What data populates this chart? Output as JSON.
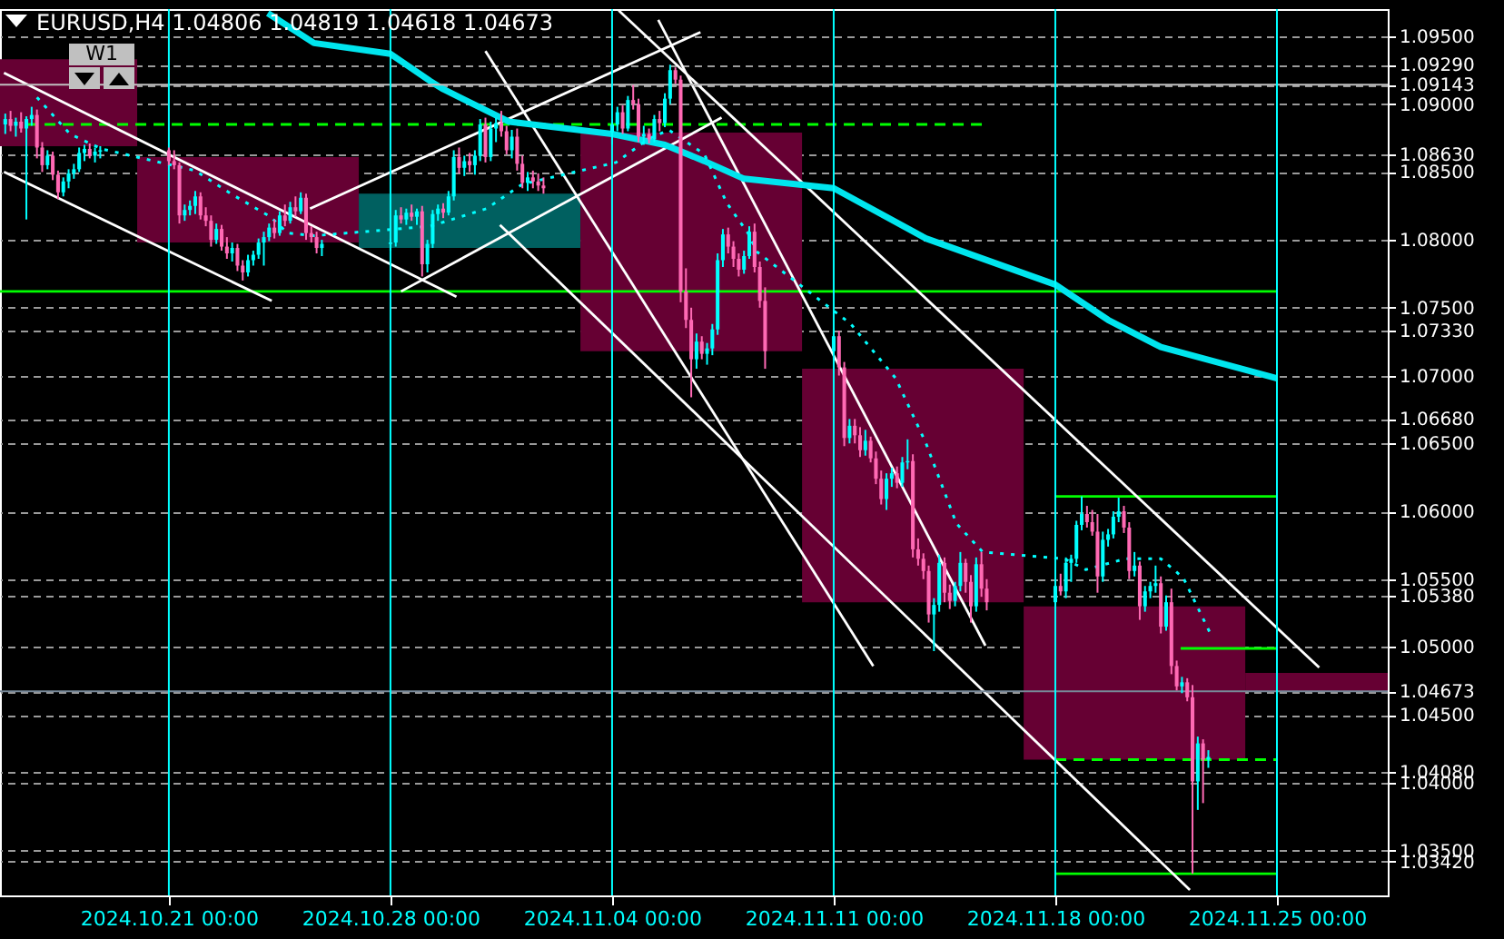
{
  "chart_data": {
    "type": "candlestick",
    "title": "EURUSD,H4  1.04806 1.04819 1.04618 1.04673",
    "annotations": [
      "W1"
    ],
    "x": [
      "2024-10-15T20:00",
      "2024-10-16T00:00",
      "2024-10-16T04:00",
      "2024-10-16T08:00",
      "2024-10-16T12:00",
      "2024-10-16T16:00",
      "2024-10-16T20:00",
      "2024-10-17T00:00",
      "2024-10-17T04:00",
      "2024-10-17T08:00",
      "2024-10-17T12:00",
      "2024-10-17T16:00",
      "2024-10-17T20:00",
      "2024-10-18T00:00",
      "2024-10-18T04:00",
      "2024-10-18T08:00",
      "2024-10-18T12:00",
      "2024-10-18T16:00",
      "2024-10-18T20:00",
      "2024-10-21T00:00",
      "2024-10-21T04:00",
      "2024-10-21T08:00",
      "2024-10-21T12:00",
      "2024-10-21T16:00",
      "2024-10-21T20:00",
      "2024-10-22T00:00",
      "2024-10-22T04:00",
      "2024-10-22T08:00",
      "2024-10-22T12:00",
      "2024-10-22T16:00",
      "2024-10-22T20:00",
      "2024-10-23T00:00",
      "2024-10-23T04:00",
      "2024-10-23T08:00",
      "2024-10-23T12:00",
      "2024-10-23T16:00",
      "2024-10-23T20:00",
      "2024-10-24T00:00",
      "2024-10-24T04:00",
      "2024-10-24T08:00",
      "2024-10-24T12:00",
      "2024-10-24T16:00",
      "2024-10-24T20:00",
      "2024-10-25T00:00",
      "2024-10-25T04:00",
      "2024-10-25T08:00",
      "2024-10-25T12:00",
      "2024-10-25T16:00",
      "2024-10-25T20:00",
      "2024-10-28T00:00",
      "2024-10-28T04:00",
      "2024-10-28T08:00",
      "2024-10-28T12:00",
      "2024-10-28T16:00",
      "2024-10-28T20:00",
      "2024-10-29T00:00",
      "2024-10-29T04:00",
      "2024-10-29T08:00",
      "2024-10-29T12:00",
      "2024-10-29T16:00",
      "2024-10-29T20:00",
      "2024-10-30T00:00",
      "2024-10-30T04:00",
      "2024-10-30T08:00",
      "2024-10-30T12:00",
      "2024-10-30T16:00",
      "2024-10-30T20:00",
      "2024-10-31T00:00",
      "2024-10-31T04:00",
      "2024-10-31T08:00",
      "2024-10-31T12:00",
      "2024-10-31T16:00",
      "2024-10-31T20:00",
      "2024-11-01T00:00",
      "2024-11-01T04:00",
      "2024-11-01T08:00",
      "2024-11-01T12:00",
      "2024-11-01T16:00",
      "2024-11-01T20:00",
      "2024-11-04T00:00",
      "2024-11-04T04:00",
      "2024-11-04T08:00",
      "2024-11-04T12:00",
      "2024-11-04T16:00",
      "2024-11-04T20:00",
      "2024-11-05T00:00",
      "2024-11-05T04:00",
      "2024-11-05T08:00",
      "2024-11-05T12:00",
      "2024-11-05T16:00",
      "2024-11-05T20:00",
      "2024-11-06T00:00",
      "2024-11-06T04:00",
      "2024-11-06T08:00",
      "2024-11-06T12:00",
      "2024-11-06T16:00",
      "2024-11-06T20:00",
      "2024-11-07T00:00",
      "2024-11-07T04:00",
      "2024-11-07T08:00",
      "2024-11-07T12:00",
      "2024-11-07T16:00",
      "2024-11-07T20:00",
      "2024-11-08T00:00",
      "2024-11-08T04:00",
      "2024-11-08T08:00",
      "2024-11-08T12:00",
      "2024-11-08T16:00",
      "2024-11-08T20:00",
      "2024-11-11T00:00",
      "2024-11-11T04:00",
      "2024-11-11T08:00",
      "2024-11-11T12:00",
      "2024-11-11T16:00",
      "2024-11-11T20:00",
      "2024-11-12T00:00",
      "2024-11-12T04:00",
      "2024-11-12T08:00",
      "2024-11-12T12:00",
      "2024-11-12T16:00",
      "2024-11-12T20:00",
      "2024-11-13T00:00",
      "2024-11-13T04:00",
      "2024-11-13T08:00",
      "2024-11-13T12:00",
      "2024-11-13T16:00",
      "2024-11-13T20:00",
      "2024-11-14T00:00",
      "2024-11-14T04:00",
      "2024-11-14T08:00",
      "2024-11-14T12:00",
      "2024-11-14T16:00",
      "2024-11-14T20:00",
      "2024-11-15T00:00",
      "2024-11-15T04:00",
      "2024-11-15T08:00",
      "2024-11-15T12:00",
      "2024-11-15T16:00",
      "2024-11-15T20:00",
      "2024-11-18T00:00",
      "2024-11-18T04:00",
      "2024-11-18T08:00",
      "2024-11-18T12:00",
      "2024-11-18T16:00",
      "2024-11-18T20:00",
      "2024-11-19T00:00",
      "2024-11-19T04:00",
      "2024-11-19T08:00",
      "2024-11-19T12:00",
      "2024-11-19T16:00",
      "2024-11-19T20:00",
      "2024-11-20T00:00",
      "2024-11-20T04:00",
      "2024-11-20T08:00",
      "2024-11-20T12:00",
      "2024-11-20T16:00",
      "2024-11-20T20:00",
      "2024-11-21T00:00",
      "2024-11-21T04:00",
      "2024-11-21T08:00",
      "2024-11-21T12:00",
      "2024-11-21T16:00",
      "2024-11-21T20:00",
      "2024-11-22T00:00",
      "2024-11-22T04:00",
      "2024-11-22T08:00",
      "2024-11-22T12:00",
      "2024-11-22T16:00",
      "2024-11-22T20:00"
    ],
    "ohlc": [
      [
        1.0885,
        1.0893,
        1.0878,
        1.0889
      ],
      [
        1.0889,
        1.0895,
        1.088,
        1.0884
      ],
      [
        1.0884,
        1.089,
        1.0876,
        1.0887
      ],
      [
        1.0887,
        1.0894,
        1.0879,
        1.0882
      ],
      [
        1.0882,
        1.0891,
        1.0815,
        1.0889
      ],
      [
        1.0889,
        1.0898,
        1.0884,
        1.0892
      ],
      [
        1.0892,
        1.0896,
        1.086,
        1.0868
      ],
      [
        1.0868,
        1.0872,
        1.085,
        1.0855
      ],
      [
        1.0855,
        1.0866,
        1.0852,
        1.0862
      ],
      [
        1.0862,
        1.0865,
        1.0844,
        1.0848
      ],
      [
        1.0848,
        1.0851,
        1.083,
        1.0835
      ],
      [
        1.0835,
        1.0846,
        1.0832,
        1.0843
      ],
      [
        1.0843,
        1.0852,
        1.0838,
        1.0849
      ],
      [
        1.0849,
        1.0856,
        1.0845,
        1.0852
      ],
      [
        1.0852,
        1.0868,
        1.085,
        1.0864
      ],
      [
        1.0864,
        1.087,
        1.0858,
        1.0867
      ],
      [
        1.0867,
        1.0871,
        1.086,
        1.0862
      ],
      [
        1.0862,
        1.0868,
        1.0857,
        1.0865
      ],
      [
        1.0865,
        1.0869,
        1.086,
        1.0866
      ],
      [
        1.0866,
        1.0868,
        1.0855,
        1.0858
      ],
      [
        1.0858,
        1.0866,
        1.0852,
        1.0855
      ],
      [
        1.0855,
        1.0857,
        1.0812,
        1.0818
      ],
      [
        1.0818,
        1.0826,
        1.0814,
        1.0822
      ],
      [
        1.0822,
        1.0829,
        1.0818,
        1.0825
      ],
      [
        1.0825,
        1.0836,
        1.0819,
        1.0832
      ],
      [
        1.0832,
        1.0835,
        1.0815,
        1.0818
      ],
      [
        1.0818,
        1.0824,
        1.081,
        1.0814
      ],
      [
        1.0814,
        1.0818,
        1.0795,
        1.08
      ],
      [
        1.08,
        1.0812,
        1.0797,
        1.0808
      ],
      [
        1.0808,
        1.0811,
        1.0792,
        1.0795
      ],
      [
        1.0795,
        1.0802,
        1.0786,
        1.079
      ],
      [
        1.079,
        1.0798,
        1.0784,
        1.0794
      ],
      [
        1.0794,
        1.0797,
        1.0777,
        1.0781
      ],
      [
        1.0781,
        1.0785,
        1.077,
        1.0776
      ],
      [
        1.0776,
        1.0789,
        1.0773,
        1.0785
      ],
      [
        1.0785,
        1.0792,
        1.0781,
        1.0789
      ],
      [
        1.0789,
        1.0801,
        1.0786,
        1.0798
      ],
      [
        1.0798,
        1.0806,
        1.0781,
        1.0802
      ],
      [
        1.0802,
        1.0812,
        1.0799,
        1.0809
      ],
      [
        1.0809,
        1.0815,
        1.0801,
        1.0805
      ],
      [
        1.0805,
        1.0821,
        1.0803,
        1.0818
      ],
      [
        1.0818,
        1.0826,
        1.081,
        1.0814
      ],
      [
        1.0814,
        1.0828,
        1.0812,
        1.0824
      ],
      [
        1.0824,
        1.0832,
        1.0817,
        1.0821
      ],
      [
        1.0821,
        1.0835,
        1.0819,
        1.0831
      ],
      [
        1.0831,
        1.0834,
        1.08,
        1.0805
      ],
      [
        1.0805,
        1.081,
        1.0798,
        1.0802
      ],
      [
        1.0802,
        1.0806,
        1.079,
        1.0794
      ],
      [
        1.0794,
        1.08,
        1.0788,
        1.0797
      ],
      [
        1.0797,
        1.0801,
        1.0792,
        1.0798
      ],
      [
        1.0798,
        1.0822,
        1.0795,
        1.0818
      ],
      [
        1.0818,
        1.0824,
        1.0812,
        1.0815
      ],
      [
        1.0815,
        1.0823,
        1.0811,
        1.082
      ],
      [
        1.082,
        1.0826,
        1.0814,
        1.0817
      ],
      [
        1.0817,
        1.0823,
        1.0811,
        1.0821
      ],
      [
        1.0821,
        1.0825,
        1.0773,
        1.0782
      ],
      [
        1.0782,
        1.08,
        1.0776,
        1.0797
      ],
      [
        1.0797,
        1.0822,
        1.0794,
        1.0819
      ],
      [
        1.0819,
        1.0826,
        1.0814,
        1.0823
      ],
      [
        1.0823,
        1.0827,
        1.0816,
        1.082
      ],
      [
        1.082,
        1.0836,
        1.0818,
        1.0832
      ],
      [
        1.0832,
        1.0866,
        1.0829,
        1.0861
      ],
      [
        1.0861,
        1.0868,
        1.0849,
        1.0853
      ],
      [
        1.0853,
        1.0862,
        1.0847,
        1.0858
      ],
      [
        1.0858,
        1.0864,
        1.085,
        1.0855
      ],
      [
        1.0855,
        1.0866,
        1.0848,
        1.0862
      ],
      [
        1.0862,
        1.0889,
        1.0858,
        1.0885
      ],
      [
        1.0885,
        1.089,
        1.0857,
        1.0861
      ],
      [
        1.0861,
        1.0887,
        1.0858,
        1.0882
      ],
      [
        1.0882,
        1.089,
        1.0872,
        1.0886
      ],
      [
        1.0886,
        1.0895,
        1.0876,
        1.088
      ],
      [
        1.088,
        1.0884,
        1.0863,
        1.0866
      ],
      [
        1.0866,
        1.0881,
        1.086,
        1.0876
      ],
      [
        1.0876,
        1.0882,
        1.0851,
        1.0856
      ],
      [
        1.0856,
        1.0862,
        1.0838,
        1.0842
      ],
      [
        1.0842,
        1.085,
        1.0836,
        1.0846
      ],
      [
        1.0846,
        1.0851,
        1.0838,
        1.0843
      ],
      [
        1.0843,
        1.0849,
        1.0836,
        1.084
      ],
      [
        1.084,
        1.0846,
        1.0834,
        1.0838
      ],
      [
        1.0879,
        1.0889,
        1.087,
        1.0885
      ],
      [
        1.0885,
        1.0898,
        1.088,
        1.0894
      ],
      [
        1.0894,
        1.0899,
        1.0878,
        1.0882
      ],
      [
        1.0882,
        1.0906,
        1.088,
        1.0903
      ],
      [
        1.0903,
        1.0914,
        1.0896,
        1.09
      ],
      [
        1.09,
        1.0904,
        1.0872,
        1.0876
      ],
      [
        1.0876,
        1.0884,
        1.087,
        1.0878
      ],
      [
        1.0878,
        1.0882,
        1.0871,
        1.0874
      ],
      [
        1.0874,
        1.0892,
        1.0872,
        1.0889
      ],
      [
        1.0889,
        1.0895,
        1.088,
        1.0886
      ],
      [
        1.0886,
        1.0908,
        1.0883,
        1.0904
      ],
      [
        1.0904,
        1.0929,
        1.09,
        1.0925
      ],
      [
        1.0925,
        1.0927,
        1.0915,
        1.0918
      ],
      [
        1.0918,
        1.0921,
        1.0754,
        1.0762
      ],
      [
        1.0762,
        1.0779,
        1.0735,
        1.0741
      ],
      [
        1.0741,
        1.075,
        1.0684,
        1.0712
      ],
      [
        1.0712,
        1.0731,
        1.0705,
        1.0725
      ],
      [
        1.0725,
        1.0729,
        1.0712,
        1.0716
      ],
      [
        1.0716,
        1.0724,
        1.0708,
        1.072
      ],
      [
        1.072,
        1.0738,
        1.0715,
        1.0734
      ],
      [
        1.0734,
        1.079,
        1.073,
        1.0785
      ],
      [
        1.0785,
        1.0808,
        1.078,
        1.0804
      ],
      [
        1.0804,
        1.0809,
        1.079,
        1.0795
      ],
      [
        1.0795,
        1.0799,
        1.078,
        1.0786
      ],
      [
        1.0786,
        1.079,
        1.0773,
        1.0778
      ],
      [
        1.0778,
        1.0792,
        1.0775,
        1.0788
      ],
      [
        1.0788,
        1.081,
        1.0786,
        1.0806
      ],
      [
        1.0806,
        1.0812,
        1.0776,
        1.078
      ],
      [
        1.078,
        1.0784,
        1.075,
        1.0755
      ],
      [
        1.0755,
        1.0765,
        1.0705,
        1.0718
      ],
      [
        1.0718,
        1.0735,
        1.0712,
        1.0729
      ],
      [
        1.0729,
        1.0733,
        1.07,
        1.0706
      ],
      [
        1.0706,
        1.071,
        1.0648,
        1.0654
      ],
      [
        1.0654,
        1.0668,
        1.065,
        1.0663
      ],
      [
        1.0663,
        1.0668,
        1.065,
        1.0656
      ],
      [
        1.0656,
        1.0662,
        1.064,
        1.0645
      ],
      [
        1.0645,
        1.066,
        1.0641,
        1.0652
      ],
      [
        1.0652,
        1.0655,
        1.0636,
        1.0639
      ],
      [
        1.0639,
        1.0644,
        1.062,
        1.0624
      ],
      [
        1.0624,
        1.063,
        1.0605,
        1.0609
      ],
      [
        1.0609,
        1.0628,
        1.0601,
        1.0624
      ],
      [
        1.0624,
        1.0632,
        1.0618,
        1.0628
      ],
      [
        1.0628,
        1.0633,
        1.0617,
        1.0621
      ],
      [
        1.0621,
        1.064,
        1.0618,
        1.0636
      ],
      [
        1.0636,
        1.0653,
        1.0631,
        1.0637
      ],
      [
        1.0637,
        1.0642,
        1.0566,
        1.0572
      ],
      [
        1.0572,
        1.058,
        1.056,
        1.0565
      ],
      [
        1.0565,
        1.0569,
        1.055,
        1.0556
      ],
      [
        1.0556,
        1.056,
        1.0518,
        1.0524
      ],
      [
        1.0524,
        1.0536,
        1.0497,
        1.0531
      ],
      [
        1.0531,
        1.0568,
        1.0526,
        1.0562
      ],
      [
        1.0562,
        1.0566,
        1.0533,
        1.054
      ],
      [
        1.054,
        1.0546,
        1.0528,
        1.0534
      ],
      [
        1.0534,
        1.0548,
        1.053,
        1.0545
      ],
      [
        1.0545,
        1.057,
        1.0541,
        1.0562
      ],
      [
        1.0562,
        1.0565,
        1.054,
        1.0548
      ],
      [
        1.0548,
        1.0553,
        1.0518,
        1.053
      ],
      [
        1.053,
        1.0566,
        1.0526,
        1.0561
      ],
      [
        1.0561,
        1.057,
        1.0537,
        1.0543
      ],
      [
        1.0543,
        1.055,
        1.0527,
        1.0533
      ],
      [
        1.0533,
        1.055,
        1.0528,
        1.0545
      ],
      [
        1.0545,
        1.0554,
        1.0538,
        1.0541
      ],
      [
        1.0541,
        1.0566,
        1.0536,
        1.0562
      ],
      [
        1.0562,
        1.0568,
        1.0548,
        1.0565
      ],
      [
        1.0565,
        1.0593,
        1.0562,
        1.059
      ],
      [
        1.059,
        1.0611,
        1.0586,
        1.0598
      ],
      [
        1.0598,
        1.0604,
        1.0588,
        1.0592
      ],
      [
        1.0592,
        1.0601,
        1.0582,
        1.0585
      ],
      [
        1.0585,
        1.0598,
        1.054,
        1.0552
      ],
      [
        1.0552,
        1.0585,
        1.0548,
        1.0579
      ],
      [
        1.0579,
        1.0587,
        1.0574,
        1.0583
      ],
      [
        1.0583,
        1.06,
        1.058,
        1.0596
      ],
      [
        1.0596,
        1.061,
        1.0592,
        1.06
      ],
      [
        1.06,
        1.0604,
        1.0584,
        1.0588
      ],
      [
        1.0588,
        1.0592,
        1.055,
        1.0556
      ],
      [
        1.0556,
        1.057,
        1.0552,
        1.056
      ],
      [
        1.056,
        1.0563,
        1.052,
        1.053
      ],
      [
        1.053,
        1.0545,
        1.0526,
        1.0541
      ],
      [
        1.0541,
        1.0548,
        1.0536,
        1.0545
      ],
      [
        1.0545,
        1.056,
        1.054,
        1.0547
      ],
      [
        1.0547,
        1.0552,
        1.051,
        1.0515
      ],
      [
        1.0515,
        1.0538,
        1.0512,
        1.0533
      ],
      [
        1.0533,
        1.0543,
        1.048,
        1.0486
      ],
      [
        1.0486,
        1.049,
        1.0468,
        1.0471
      ],
      [
        1.0471,
        1.0478,
        1.0466,
        1.0474
      ],
      [
        1.0474,
        1.0477,
        1.046,
        1.0463
      ],
      [
        1.0463,
        1.0472,
        1.0333,
        1.0401
      ],
      [
        1.0401,
        1.0434,
        1.038,
        1.0429
      ],
      [
        1.0429,
        1.0432,
        1.0385,
        1.0417
      ],
      [
        1.0417,
        1.0424,
        1.0411,
        1.0419
      ]
    ],
    "series": [
      {
        "type": "bar",
        "x": [
          "2024-10-16T12:00",
          "2024-10-23T12:00",
          "2024-10-30T12:00",
          "2024-11-06T12:00",
          "2024-11-13T12:00",
          "2024-11-20T12:00",
          "2024-11-27T12:00"
        ],
        "base": [
          1.0933,
          1.0861,
          1.0794,
          1.0879,
          1.0705,
          1.053,
          1.0481
        ],
        "values": [
          -0.0064,
          -0.0063,
          0.004,
          -0.0161,
          -0.0172,
          -0.0113,
          -0.0014
        ],
        "colors": [
          "#660033",
          "#660033",
          "#006060",
          "#660033",
          "#660033",
          "#660033",
          "#660033"
        ]
      },
      {
        "type": "line",
        "color": "#00ff00",
        "x": [
          "2024-10-15T16:00",
          "2024-11-25T00:00"
        ],
        "values": [
          1.0762,
          1.0762
        ]
      },
      {
        "type": "line",
        "color": "#00ff00",
        "line_style": "dashed",
        "x": [
          "2024-10-16T12:00",
          "2024-11-15T20:00"
        ],
        "values": [
          1.0885,
          1.0885
        ]
      },
      {
        "type": "line",
        "color": "#00ff00",
        "x": [
          "2024-11-18T00:00",
          "2024-11-25T00:00"
        ],
        "values": [
          1.0611,
          1.0611
        ]
      },
      {
        "type": "line",
        "color": "#00ff00",
        "x": [
          "2024-11-21T23:00",
          "2024-11-25T00:00"
        ],
        "values": [
          1.0499,
          1.0499
        ]
      },
      {
        "type": "line",
        "color": "#00ff00",
        "line_style": "dashed",
        "x": [
          "2024-11-18T00:00",
          "2024-11-25T00:00"
        ],
        "values": [
          1.0417,
          1.0417
        ]
      },
      {
        "type": "line",
        "color": "#00ff00",
        "x": [
          "2024-11-18T00:00",
          "2024-11-25T00:00"
        ],
        "values": [
          1.0333,
          1.0333
        ]
      },
      {
        "type": "line",
        "color": "#ffffff",
        "x": [
          "2024-10-15T19:00",
          "2024-10-30T02:00"
        ],
        "values": [
          1.0923,
          1.0758
        ]
      },
      {
        "type": "line",
        "color": "#ffffff",
        "x": [
          "2024-10-15T19:00",
          "2024-10-24T06:00"
        ],
        "values": [
          1.085,
          1.0755
        ]
      },
      {
        "type": "line",
        "color": "#ffffff",
        "x": [
          "2024-10-25T11:00",
          "2024-11-06T19:00"
        ],
        "values": [
          1.0823,
          1.0953
        ]
      },
      {
        "type": "line",
        "color": "#ffffff",
        "x": [
          "2024-10-28T08:00",
          "2024-11-07T11:00"
        ],
        "values": [
          1.0762,
          1.089
        ]
      },
      {
        "type": "line",
        "color": "#ffffff",
        "x": [
          "2024-11-04T05:00",
          "2024-11-26T08:00"
        ],
        "values": [
          1.0969,
          1.0485
        ]
      },
      {
        "type": "line",
        "color": "#ffffff",
        "x": [
          "2024-11-05T11:00",
          "2024-11-15T19:00"
        ],
        "values": [
          1.0962,
          1.0501
        ]
      },
      {
        "type": "line",
        "color": "#ffffff",
        "x": [
          "2024-10-31T00:00",
          "2024-11-12T06:00"
        ],
        "values": [
          1.0939,
          1.0486
        ]
      },
      {
        "type": "line",
        "color": "#ffffff",
        "x": [
          "2024-10-31T11:00",
          "2024-11-22T06:00"
        ],
        "values": [
          1.0811,
          1.0321
        ]
      },
      {
        "type": "line",
        "color": "#00e5ee",
        "x": [
          "2024-10-24T03:00",
          "2024-10-25T14:00",
          "2024-10-28T00:00",
          "2024-10-29T06:00",
          "2024-10-29T16:00",
          "2024-10-31T18:00",
          "2024-11-04T00:00",
          "2024-11-05T16:00",
          "2024-11-06T22:00",
          "2024-11-08T04:00",
          "2024-11-11T00:00",
          "2024-11-13T22:00",
          "2024-11-18T00:00",
          "2024-11-19T16:00",
          "2024-11-21T08:00",
          "2024-11-25T00:00"
        ],
        "values": [
          1.0967,
          1.0945,
          1.0937,
          1.0917,
          1.0911,
          1.0887,
          1.0878,
          1.087,
          1.0858,
          1.0845,
          1.0838,
          1.0801,
          1.0767,
          1.0741,
          1.0721,
          1.0698
        ]
      },
      {
        "type": "line",
        "color": "#00ffff",
        "line_style": "dotted",
        "x": [
          "2024-10-16T20:00",
          "2024-10-17T21:00",
          "2024-10-18T21:00",
          "2024-10-21T20:00",
          "2024-10-22T23:00",
          "2024-10-24T05:00",
          "2024-10-24T18:00",
          "2024-10-25T14:00",
          "2024-10-29T06:00",
          "2024-10-31T01:00",
          "2024-11-01T04:00",
          "2024-11-04T03:00",
          "2024-11-05T03:00",
          "2024-11-05T19:00",
          "2024-11-06T22:00",
          "2024-11-07T15:00",
          "2024-11-08T07:00",
          "2024-11-08T14:00",
          "2024-11-11T13:00",
          "2024-11-12T23:00",
          "2024-11-13T22:00",
          "2024-11-14T21:00",
          "2024-11-15T17:00",
          "2024-11-18T07:00",
          "2024-11-18T23:00",
          "2024-11-20T05:00",
          "2024-11-21T08:00",
          "2024-11-22T01:00",
          "2024-11-22T21:00"
        ],
        "values": [
          1.0905,
          1.0878,
          1.0867,
          1.0851,
          1.0834,
          1.0817,
          1.0805,
          1.0803,
          1.081,
          1.0823,
          1.0841,
          1.0857,
          1.0874,
          1.0881,
          1.0863,
          1.0827,
          1.0805,
          1.0791,
          1.0738,
          1.0698,
          1.065,
          1.0591,
          1.057,
          1.0565,
          1.0557,
          1.0565,
          1.0565,
          1.0551,
          1.0511
        ]
      }
    ],
    "ref_lines": [
      {
        "axis": "y",
        "value": 1.09143,
        "color": "#c0c0c0"
      },
      {
        "axis": "y",
        "value": 1.04673,
        "color": "#778899"
      },
      {
        "axis": "x",
        "value": "2024-10-21T00:00",
        "color": "#00ffff"
      },
      {
        "axis": "x",
        "value": "2024-10-28T00:00",
        "color": "#00ffff"
      },
      {
        "axis": "x",
        "value": "2024-11-04T00:00",
        "color": "#00ffff"
      },
      {
        "axis": "x",
        "value": "2024-11-11T00:00",
        "color": "#00ffff"
      },
      {
        "axis": "x",
        "value": "2024-11-18T00:00",
        "color": "#00ffff"
      },
      {
        "axis": "x",
        "value": "2024-11-25T00:00",
        "color": "#00ffff"
      }
    ],
    "xlim": [
      "2024-10-15T16:00",
      "2024-11-28T12:00"
    ],
    "ylim": [
      1.0317,
      1.097
    ],
    "xticks": [
      {
        "value": "2024-10-21T00:00",
        "label": "2024.10.21 00:00"
      },
      {
        "value": "2024-10-28T00:00",
        "label": "2024.10.28 00:00"
      },
      {
        "value": "2024-11-04T00:00",
        "label": "2024.11.04 00:00"
      },
      {
        "value": "2024-11-11T00:00",
        "label": "2024.11.11 00:00"
      },
      {
        "value": "2024-11-18T00:00",
        "label": "2024.11.18 00:00"
      },
      {
        "value": "2024-11-25T00:00",
        "label": "2024.11.25 00:00"
      }
    ],
    "yticks": [
      {
        "value": 1.095,
        "label": "1.09500"
      },
      {
        "value": 1.0929,
        "label": "1.09290"
      },
      {
        "value": 1.09143,
        "label": "1.09143"
      },
      {
        "value": 1.09,
        "label": "1.09000"
      },
      {
        "value": 1.0863,
        "label": "1.08630"
      },
      {
        "value": 1.085,
        "label": "1.08500"
      },
      {
        "value": 1.08,
        "label": "1.08000"
      },
      {
        "value": 1.075,
        "label": "1.07500"
      },
      {
        "value": 1.0733,
        "label": "1.07330"
      },
      {
        "value": 1.07,
        "label": "1.07000"
      },
      {
        "value": 1.0668,
        "label": "1.06680"
      },
      {
        "value": 1.065,
        "label": "1.06500"
      },
      {
        "value": 1.06,
        "label": "1.06000"
      },
      {
        "value": 1.055,
        "label": "1.05500"
      },
      {
        "value": 1.0538,
        "label": "1.05380"
      },
      {
        "value": 1.05,
        "label": "1.05000"
      },
      {
        "value": 1.04673,
        "label": "1.04673"
      },
      {
        "value": 1.045,
        "label": "1.04500"
      },
      {
        "value": 1.0408,
        "label": "1.04080"
      },
      {
        "value": 1.04,
        "label": "1.04000"
      },
      {
        "value": 1.035,
        "label": "1.03500"
      },
      {
        "value": 1.0342,
        "label": "1.03420"
      }
    ],
    "grid": "y"
  }
}
